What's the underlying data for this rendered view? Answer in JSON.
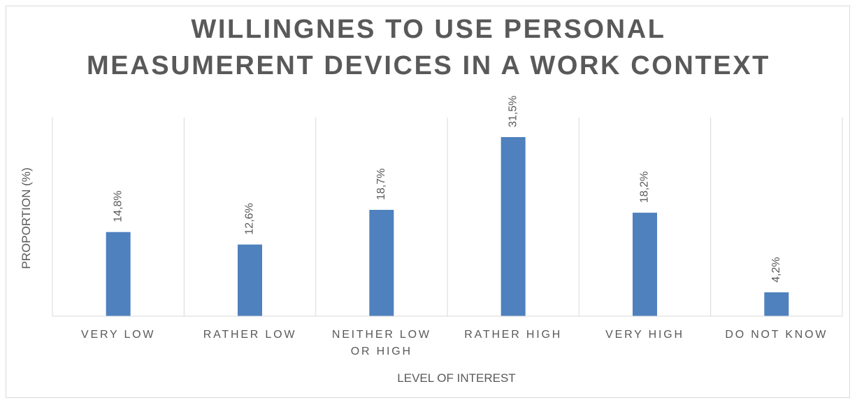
{
  "chart_data": {
    "type": "bar",
    "title": "WILLINGNES TO USE PERSONAL\nMEASUMERENT DEVICES IN A WORK CONTEXT",
    "xlabel": "LEVEL OF INTEREST",
    "ylabel": "PROPORTION (%)",
    "categories": [
      "VERY LOW",
      "RATHER LOW",
      "NEITHER LOW\nOR HIGH",
      "RATHER HIGH",
      "VERY HIGH",
      "DO NOT KNOW"
    ],
    "values": [
      14.8,
      12.6,
      18.7,
      31.5,
      18.2,
      4.2
    ],
    "data_labels": [
      "14,8%",
      "12,6%",
      "18,7%",
      "31,5%",
      "18,2%",
      "4,2%"
    ],
    "ylim": [
      0,
      35
    ],
    "grid": "vertical category separators",
    "legend": "none",
    "bar_color": "#4e81bd"
  }
}
